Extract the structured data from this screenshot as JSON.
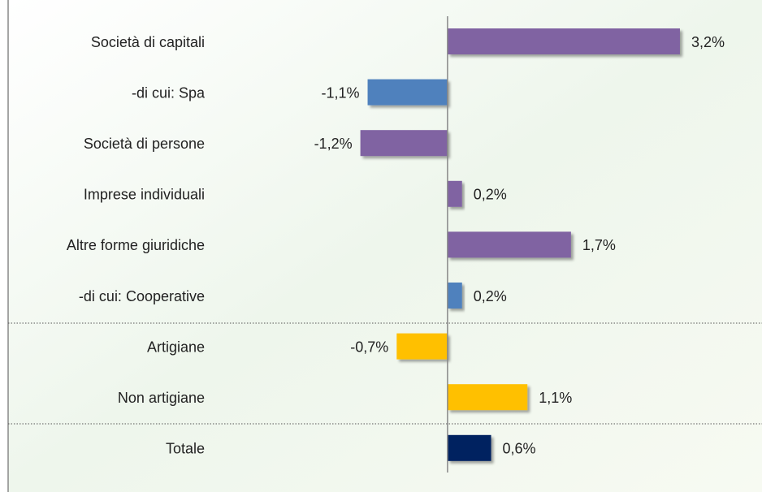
{
  "chart_data": {
    "type": "bar",
    "orientation": "horizontal",
    "categories": [
      "Società di capitali",
      "-di cui: Spa",
      "Società di persone",
      "Imprese individuali",
      "Altre forme giuridiche",
      "-di cui: Cooperative",
      "Artigiane",
      "Non artigiane",
      "Totale"
    ],
    "values": [
      3.2,
      -1.1,
      -1.2,
      0.2,
      1.7,
      0.2,
      -0.7,
      1.1,
      0.6
    ],
    "value_labels": [
      "3,2%",
      "-1,1%",
      "-1,2%",
      "0,2%",
      "1,7%",
      "0,2%",
      "-0,7%",
      "1,1%",
      "0,6%"
    ],
    "colors": [
      "#8064a2",
      "#4f81bd",
      "#8064a2",
      "#8064a2",
      "#8064a2",
      "#4f81bd",
      "#ffc000",
      "#ffc000",
      "#002060"
    ],
    "xlim": [
      -6.05,
      4.33
    ]
  }
}
